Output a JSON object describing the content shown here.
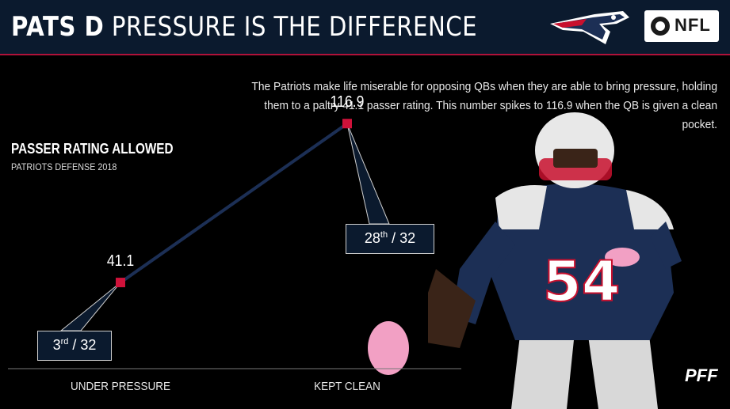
{
  "header": {
    "title_bold": "PATS D",
    "title_rest": "PRESSURE IS THE DIFFERENCE",
    "nfl_label": "NFL"
  },
  "description": "The Patriots make life miserable for opposing QBs when they are able to bring pressure, holding them to a paltry 41.1 passer rating. This number spikes to 116.9 when the QB is given a clean pocket.",
  "chart_data": {
    "type": "line",
    "title": "PASSER RATING ALLOWED",
    "subtitle": "PATRIOTS DEFENSE 2018",
    "categories": [
      "UNDER PRESSURE",
      "KEPT CLEAN"
    ],
    "values": [
      41.1,
      116.9
    ],
    "value_labels": [
      "41.1",
      "116.9"
    ],
    "ranks": [
      {
        "num": "3",
        "suffix": "rd",
        "total": "/ 32"
      },
      {
        "num": "28",
        "suffix": "th",
        "total": "/ 32"
      }
    ],
    "ylim": [
      0,
      140
    ],
    "grid": false,
    "colors": {
      "line": "#1c2f55",
      "marker": "#d0123a",
      "box": "#0b1a2e"
    }
  },
  "branding": {
    "pff": "PFF"
  },
  "icons": {
    "team_logo": "patriots-logo-icon",
    "network_logo": "cbs-eye-icon"
  }
}
